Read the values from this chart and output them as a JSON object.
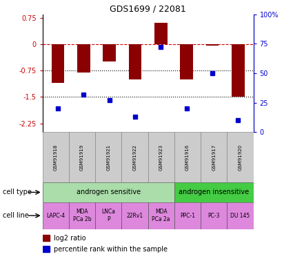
{
  "title": "GDS1699 / 22081",
  "samples": [
    "GSM91918",
    "GSM91919",
    "GSM91921",
    "GSM91922",
    "GSM91923",
    "GSM91916",
    "GSM91917",
    "GSM91920"
  ],
  "log2_ratio": [
    -1.1,
    -0.8,
    -0.5,
    -1.0,
    0.6,
    -1.0,
    -0.05,
    -1.5
  ],
  "percentile_rank": [
    20,
    32,
    27,
    13,
    72,
    20,
    50,
    10
  ],
  "cell_type_groups": [
    {
      "label": "androgen sensitive",
      "start": 0,
      "end": 5,
      "color": "#aaddaa"
    },
    {
      "label": "androgen insensitive",
      "start": 5,
      "end": 8,
      "color": "#44cc44"
    }
  ],
  "cell_lines": [
    "LAPC-4",
    "MDA\nPCa 2b",
    "LNCa\nP",
    "22Rv1",
    "MDA\nPCa 2a",
    "PPC-1",
    "PC-3",
    "DU 145"
  ],
  "cell_line_color": "#dd88dd",
  "sample_box_color": "#cccccc",
  "bar_color": "#8b0000",
  "dot_color": "#0000cc",
  "ylim_left": [
    -2.5,
    0.85
  ],
  "ylim_right": [
    0,
    100
  ],
  "yticks_left": [
    0.75,
    0,
    -0.75,
    -1.5,
    -2.25
  ],
  "yticks_right": [
    100,
    75,
    50,
    25,
    0
  ],
  "hline_y": [
    0,
    -0.75,
    -1.5
  ],
  "hline_styles": [
    "--",
    ":",
    ":"
  ],
  "hline_colors": [
    "#cc0000",
    "black",
    "black"
  ]
}
